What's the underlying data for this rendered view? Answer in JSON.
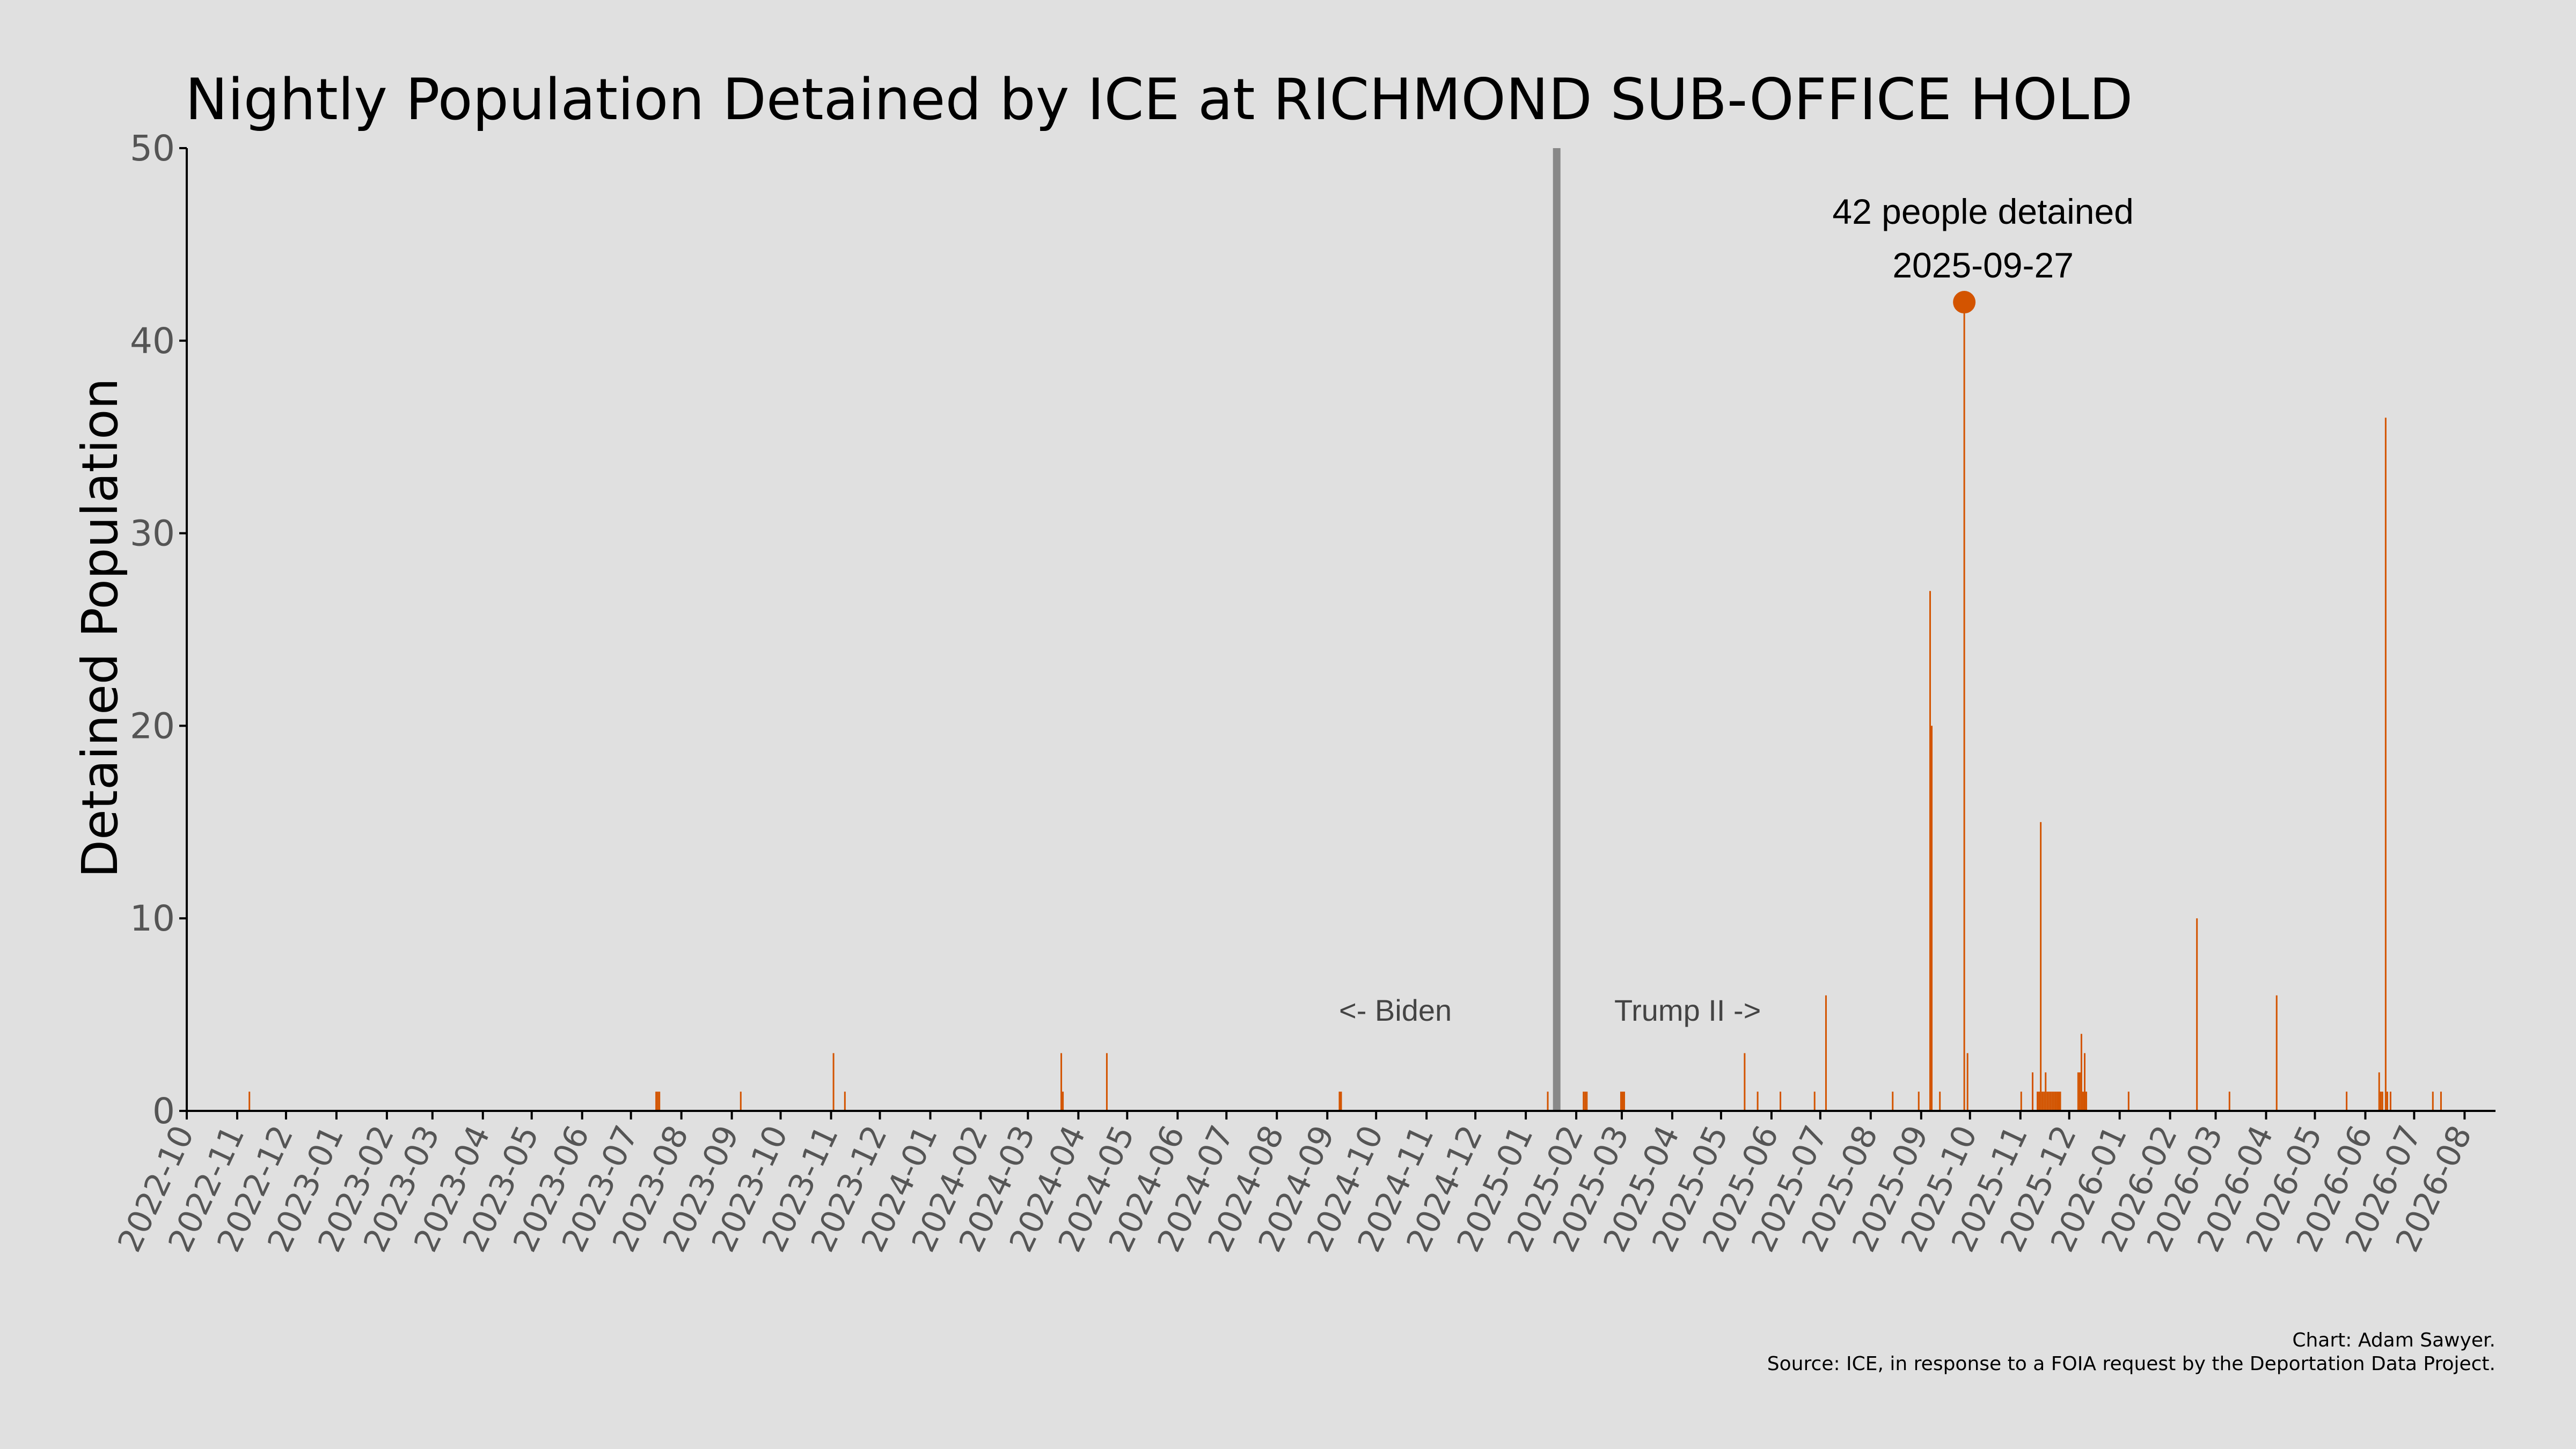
{
  "colors": {
    "background": "#e0e0e0",
    "bar": "#d35400",
    "divider": "#888888",
    "axis": "#000000"
  },
  "chart_data": {
    "type": "bar",
    "title": "Nightly Population Detained by ICE at RICHMOND SUB-OFFICE HOLD",
    "ylabel": "Detained Population",
    "xlabel": "",
    "ylim": [
      0,
      50
    ],
    "yticks": [
      "0",
      "10",
      "20",
      "30",
      "40",
      "50"
    ],
    "xlim": [
      "2022-10-01",
      "2026-08-20"
    ],
    "xticks": [
      "2022-10",
      "2022-11",
      "2022-12",
      "2023-01",
      "2023-02",
      "2023-03",
      "2023-04",
      "2023-05",
      "2023-06",
      "2023-07",
      "2023-08",
      "2023-09",
      "2023-10",
      "2023-11",
      "2023-12",
      "2024-01",
      "2024-02",
      "2024-03",
      "2024-04",
      "2024-05",
      "2024-06",
      "2024-07",
      "2024-08",
      "2024-09",
      "2024-10",
      "2024-11",
      "2024-12",
      "2025-01",
      "2025-02",
      "2025-03",
      "2025-04",
      "2025-05",
      "2025-06",
      "2025-07",
      "2025-08",
      "2025-09",
      "2025-10",
      "2025-11",
      "2025-12",
      "2026-01",
      "2026-02",
      "2026-03",
      "2026-04",
      "2026-05",
      "2026-06",
      "2026-07",
      "2026-08"
    ],
    "grid": false,
    "divider_date": "2025-01-20",
    "era_labels": {
      "before": "<- Biden",
      "after": "Trump II ->"
    },
    "peak": {
      "date": "2025-09-27",
      "value": 42,
      "label_line1": "42 people detained",
      "label_line2": "2025-09-27"
    },
    "x": [
      "2022-11-08",
      "2023-07-16",
      "2023-07-17",
      "2023-07-18",
      "2023-09-06",
      "2023-11-02",
      "2023-11-09",
      "2024-03-21",
      "2024-03-22",
      "2024-04-18",
      "2024-09-08",
      "2024-09-09",
      "2025-01-14",
      "2025-02-05",
      "2025-02-06",
      "2025-02-07",
      "2025-02-28",
      "2025-03-01",
      "2025-03-02",
      "2025-05-15",
      "2025-05-23",
      "2025-06-06",
      "2025-06-27",
      "2025-07-04",
      "2025-08-14",
      "2025-08-30",
      "2025-09-06",
      "2025-09-07",
      "2025-09-12",
      "2025-09-27",
      "2025-09-29",
      "2025-11-01",
      "2025-11-08",
      "2025-11-11",
      "2025-11-12",
      "2025-11-13",
      "2025-11-14",
      "2025-11-15",
      "2025-11-16",
      "2025-11-17",
      "2025-11-18",
      "2025-11-19",
      "2025-11-20",
      "2025-11-21",
      "2025-11-22",
      "2025-11-23",
      "2025-11-24",
      "2025-11-25",
      "2025-12-06",
      "2025-12-07",
      "2025-12-08",
      "2025-12-09",
      "2025-12-10",
      "2025-12-11",
      "2026-01-06",
      "2026-02-17",
      "2026-03-09",
      "2026-04-07",
      "2026-05-20",
      "2026-06-09",
      "2026-06-10",
      "2026-06-11",
      "2026-06-13",
      "2026-06-14",
      "2026-06-16",
      "2026-07-12",
      "2026-07-17"
    ],
    "values": [
      1,
      1,
      1,
      1,
      1,
      3,
      1,
      3,
      1,
      3,
      1,
      1,
      1,
      1,
      1,
      1,
      1,
      1,
      1,
      3,
      1,
      1,
      1,
      6,
      1,
      1,
      27,
      20,
      1,
      42,
      3,
      1,
      2,
      1,
      1,
      15,
      1,
      1,
      2,
      1,
      1,
      1,
      1,
      1,
      1,
      1,
      1,
      1,
      2,
      2,
      4,
      1,
      3,
      1,
      1,
      10,
      1,
      6,
      1,
      2,
      1,
      1,
      36,
      1,
      1,
      1,
      1
    ]
  },
  "footer": {
    "credit": "Chart: Adam Sawyer.",
    "source": "Source: ICE, in response to a FOIA request by the Deportation Data Project."
  }
}
